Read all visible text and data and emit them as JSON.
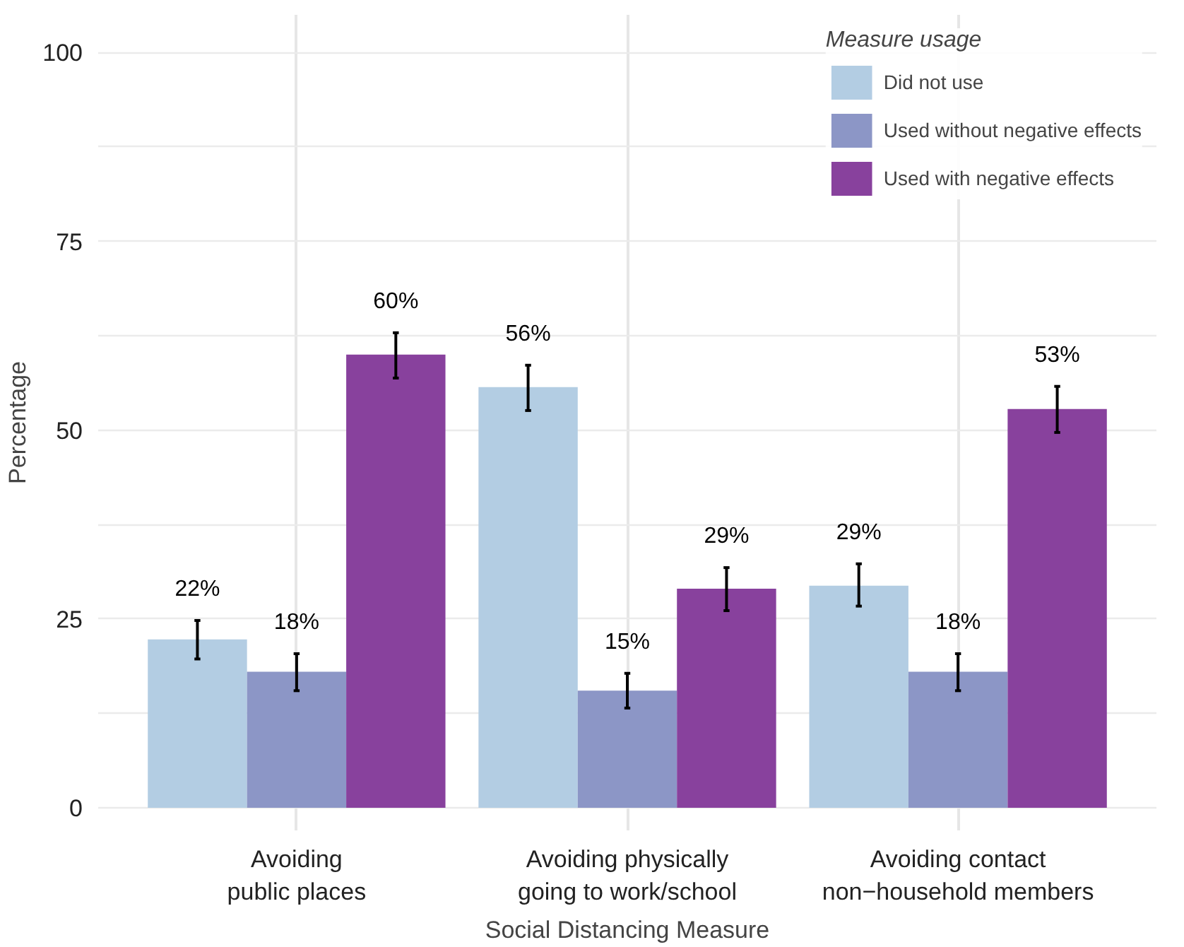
{
  "chart_data": {
    "type": "bar",
    "xlabel": "Social Distancing Measure",
    "ylabel": "Percentage",
    "legend_title": "Measure usage",
    "categories": [
      "Avoiding\npublic places",
      "Avoiding physically\ngoing to work/school",
      "Avoiding contact\nnon−household members"
    ],
    "series": [
      {
        "name": "Did not use",
        "color": "#b3cde3",
        "values": [
          22.3,
          55.7,
          29.4
        ],
        "errors": [
          [
            19.7,
            24.8
          ],
          [
            52.6,
            58.6
          ],
          [
            26.7,
            32.3
          ]
        ],
        "value_labels": [
          "22%",
          "56%",
          "29%"
        ]
      },
      {
        "name": "Used without negative effects",
        "color": "#8c96c6",
        "values": [
          18,
          15.5,
          18
        ],
        "errors": [
          [
            15.5,
            20.4
          ],
          [
            13.2,
            17.8
          ],
          [
            15.5,
            20.4
          ]
        ],
        "value_labels": [
          "18%",
          "15%",
          "18%"
        ]
      },
      {
        "name": "Used with negative effects",
        "color": "#88419d",
        "values": [
          60,
          29,
          52.8
        ],
        "errors": [
          [
            56.9,
            62.9
          ],
          [
            26.1,
            31.8
          ],
          [
            49.7,
            55.8
          ]
        ],
        "value_labels": [
          "60%",
          "29%",
          "53%"
        ]
      }
    ],
    "ylim": [
      -3,
      105
    ],
    "yticks": [
      0,
      {
        "value": 12.5,
        "label": null
      },
      25,
      {
        "value": 37.5,
        "label": null
      },
      50,
      {
        "value": 62.5,
        "label": null
      },
      75,
      {
        "value": 87.5,
        "label": null
      },
      100
    ],
    "grid": true,
    "legend": "top right"
  }
}
